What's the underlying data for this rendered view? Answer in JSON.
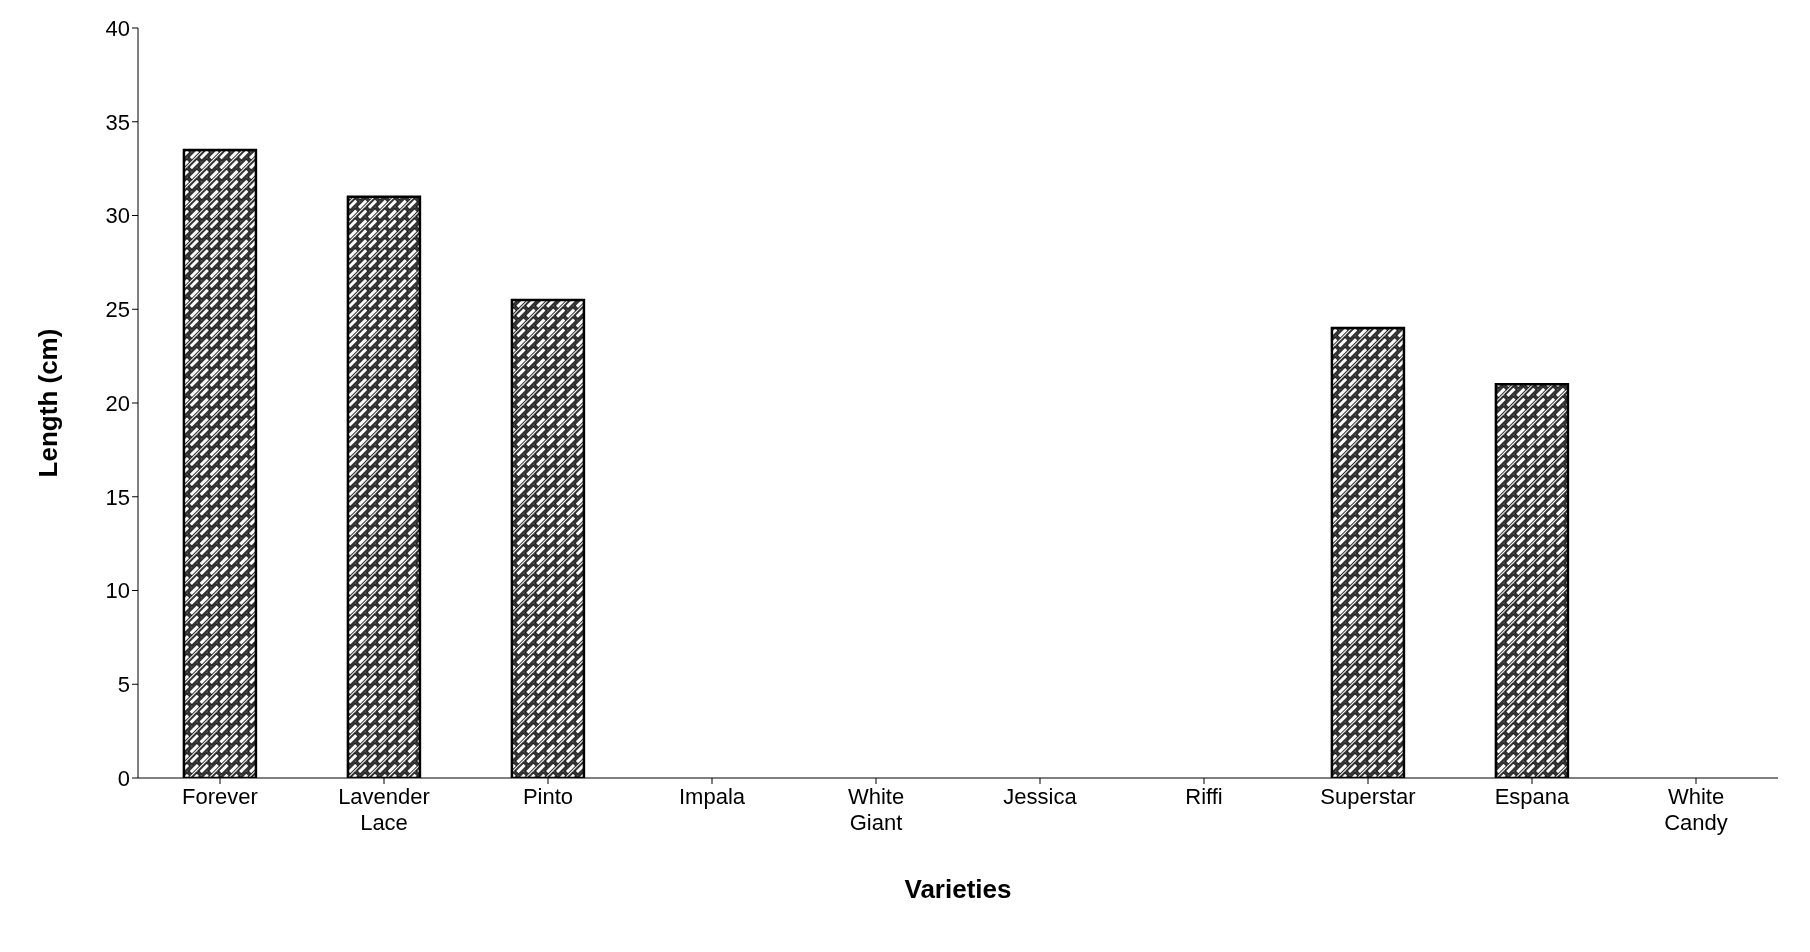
{
  "chart_data": {
    "type": "bar",
    "xlabel": "Varieties",
    "ylabel": "Length (cm)",
    "categories": [
      "Forever",
      "Lavender Lace",
      "Pinto",
      "Impala",
      "White Giant",
      "Jessica",
      "Riffi",
      "Superstar",
      "Espana",
      "White Candy"
    ],
    "values": [
      33.5,
      31,
      25.5,
      null,
      null,
      null,
      null,
      24,
      21,
      null
    ],
    "color": "#000000",
    "ylim": [
      0,
      40
    ],
    "yticks": [
      0,
      5,
      10,
      15,
      20,
      25,
      30,
      35,
      40
    ],
    "grid": false
  }
}
